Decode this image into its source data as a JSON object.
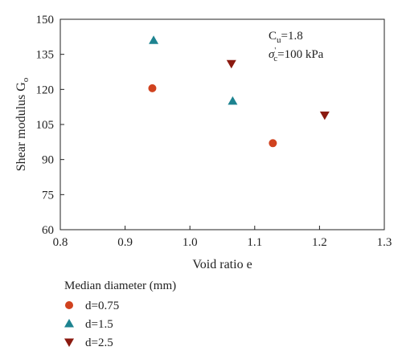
{
  "chart_data": {
    "type": "scatter",
    "xlabel": "Void ratio e",
    "ylabel": "Shear modulus G",
    "ylabel_sub": "o",
    "xlim": [
      0.8,
      1.3
    ],
    "ylim": [
      60,
      150
    ],
    "x_ticks": [
      "0.8",
      "0.9",
      "1.0",
      "1.1",
      "1.2",
      "1.3"
    ],
    "y_ticks": [
      "60",
      "75",
      "90",
      "105",
      "120",
      "135",
      "150"
    ],
    "grid": false,
    "annotations": {
      "cu_main": "C",
      "cu_sub": "u",
      "cu_value": "=1.8",
      "sigma_main": "σ",
      "sigma_sup": "'",
      "sigma_sub": "c",
      "sigma_value": "=100 kPa"
    },
    "legend": {
      "title": "Median diameter (mm)",
      "placement": "bottom-left"
    },
    "series": [
      {
        "name": "d=0.75",
        "marker": "circle",
        "color": "#d0421f",
        "points": [
          {
            "x": 0.942,
            "y": 120.5
          },
          {
            "x": 1.128,
            "y": 97
          }
        ]
      },
      {
        "name": "d=1.5",
        "marker": "triangle-up",
        "color": "#1d8390",
        "points": [
          {
            "x": 0.944,
            "y": 141
          },
          {
            "x": 1.066,
            "y": 115
          }
        ]
      },
      {
        "name": "d=2.5",
        "marker": "triangle-down",
        "color": "#8b1a10",
        "points": [
          {
            "x": 1.064,
            "y": 131
          },
          {
            "x": 1.208,
            "y": 109
          }
        ]
      }
    ]
  }
}
